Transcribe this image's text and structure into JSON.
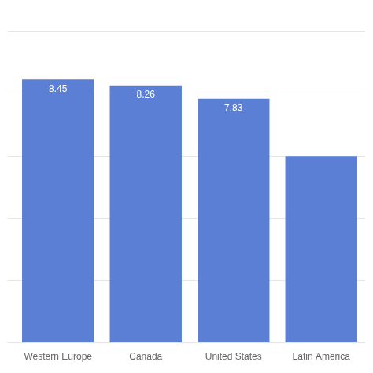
{
  "chart_data": {
    "type": "bar",
    "categories": [
      "Western Europe",
      "Canada",
      "United States",
      "Latin America"
    ],
    "values": [
      8.45,
      8.26,
      7.83,
      6.0
    ],
    "color": "#5b7fd4",
    "ylim": [
      0,
      10
    ],
    "yticks": [
      0,
      2,
      4,
      6,
      8,
      10
    ],
    "grid": true,
    "tick_labels": "x",
    "data_labels": true,
    "value_labels": [
      "8.45",
      "8.26",
      "7.83",
      null
    ]
  }
}
